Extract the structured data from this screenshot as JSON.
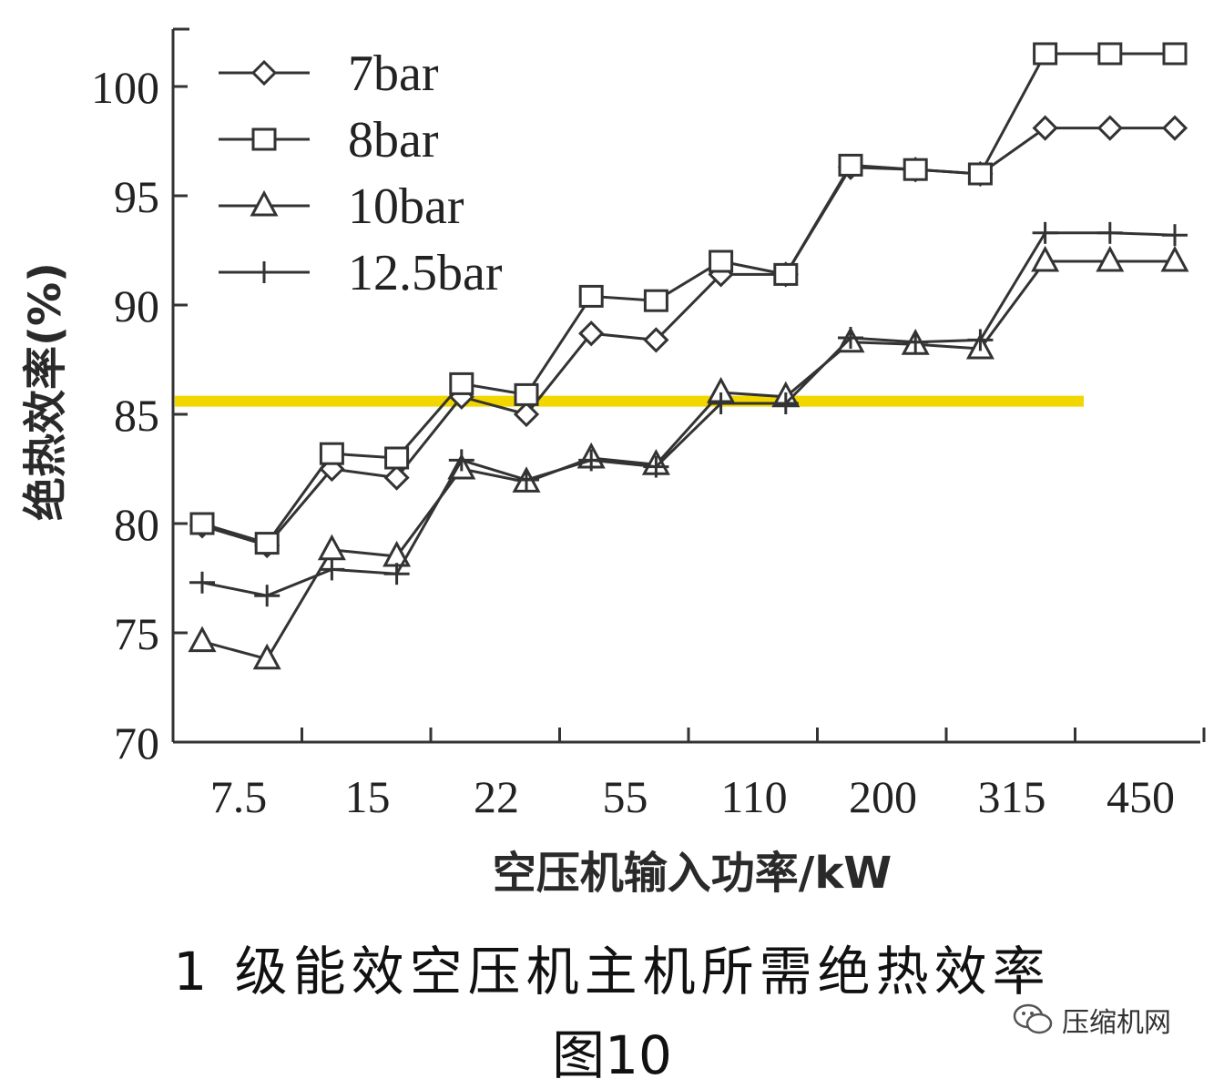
{
  "chart_data": {
    "type": "line",
    "x_ticks": [
      "7.5",
      "15",
      "22",
      "55",
      "110",
      "200",
      "315",
      "450"
    ],
    "ylabel": "绝热效率(%)",
    "xlabel": "空压机输入功率/kW",
    "ylim": [
      70,
      102
    ],
    "yticks": [
      70,
      75,
      80,
      85,
      90,
      95,
      100
    ],
    "legend_position": "top-left",
    "reference_line": {
      "y": 85.6,
      "color": "#f2d600"
    },
    "series": [
      {
        "name": "7bar",
        "marker": "diamond",
        "values": [
          79.9,
          79.0,
          82.5,
          82.1,
          85.8,
          85.0,
          88.7,
          88.4,
          91.4,
          91.4,
          96.3,
          96.2,
          96.0,
          98.1,
          98.1,
          98.1
        ]
      },
      {
        "name": "8bar",
        "marker": "square",
        "values": [
          80.0,
          79.1,
          83.2,
          83.0,
          86.4,
          85.9,
          90.4,
          90.2,
          92.0,
          91.4,
          96.4,
          96.2,
          96.0,
          101.5,
          101.5,
          101.5
        ]
      },
      {
        "name": "10bar",
        "marker": "triangle",
        "values": [
          74.6,
          73.8,
          78.8,
          78.5,
          82.5,
          81.9,
          83.0,
          82.7,
          86.0,
          85.8,
          88.3,
          88.2,
          88.0,
          92.0,
          92.0,
          92.0
        ]
      },
      {
        "name": "12.5bar",
        "marker": "plus",
        "values": [
          77.3,
          76.7,
          77.9,
          77.7,
          82.9,
          82.0,
          82.9,
          82.6,
          85.5,
          85.5,
          88.5,
          88.3,
          88.4,
          93.3,
          93.3,
          93.2
        ]
      }
    ]
  },
  "caption": {
    "line": "1 级能效空压机主机所需绝热效率",
    "figure": "图10"
  },
  "watermark": {
    "text": "压缩机网"
  }
}
